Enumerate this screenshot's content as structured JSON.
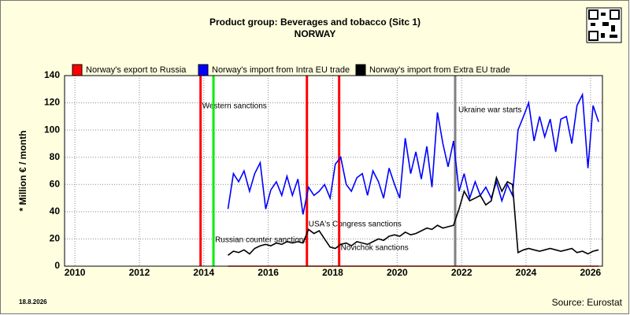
{
  "chart_data": {
    "type": "line",
    "title": "Product group: Beverages and tobacco (Sitc 1)",
    "subtitle": "NORWAY",
    "y_label": "* Million € / month",
    "date": "18.8.2026",
    "source": "Source: Eurostat",
    "xlim": [
      2009.68,
      2026.37
    ],
    "xticks": [
      2010,
      2012,
      2014,
      2016,
      2018,
      2020,
      2022,
      2024,
      2026
    ],
    "ylim": [
      0,
      140
    ],
    "yticks": [
      0,
      20,
      40,
      60,
      80,
      100,
      120,
      140
    ],
    "grid": true,
    "x": [
      2014.75,
      2014.92,
      2015.08,
      2015.25,
      2015.42,
      2015.58,
      2015.75,
      2015.92,
      2016.08,
      2016.25,
      2016.42,
      2016.58,
      2016.75,
      2016.92,
      2017.08,
      2017.25,
      2017.42,
      2017.58,
      2017.75,
      2017.92,
      2018.08,
      2018.25,
      2018.42,
      2018.58,
      2018.75,
      2018.92,
      2019.08,
      2019.25,
      2019.42,
      2019.58,
      2019.75,
      2019.92,
      2020.08,
      2020.25,
      2020.42,
      2020.58,
      2020.75,
      2020.92,
      2021.08,
      2021.25,
      2021.42,
      2021.58,
      2021.75,
      2021.92,
      2022.08,
      2022.25,
      2022.42,
      2022.58,
      2022.75,
      2022.92,
      2023.08,
      2023.25,
      2023.42,
      2023.58,
      2023.75,
      2023.92,
      2024.08,
      2024.25,
      2024.42,
      2024.58,
      2024.75,
      2024.92,
      2025.08,
      2025.25,
      2025.42,
      2025.58,
      2025.75,
      2025.92,
      2026.08,
      2026.25
    ],
    "series": [
      {
        "name": "Norway's export to Russia",
        "color": "#ff0000",
        "values": [
          0,
          0,
          0,
          0,
          0,
          0,
          0,
          0,
          0,
          0,
          0,
          0,
          0,
          0,
          0,
          0,
          0,
          0,
          0,
          0,
          0,
          0,
          0,
          0,
          0,
          0,
          0,
          0,
          0,
          0,
          0,
          0,
          0,
          0,
          0,
          0,
          0,
          0,
          0,
          0,
          0,
          0,
          0,
          0,
          0,
          0,
          0,
          0,
          0,
          0,
          0,
          0,
          0,
          0,
          0,
          0,
          0,
          0,
          0,
          0,
          0,
          0,
          0,
          0,
          0,
          0,
          0,
          0,
          0,
          0
        ]
      },
      {
        "name": "Norway's import from Intra EU trade",
        "color": "#0000ff",
        "values": [
          42,
          68,
          62,
          70,
          55,
          68,
          76,
          42,
          56,
          62,
          52,
          66,
          52,
          64,
          38,
          58,
          52,
          55,
          60,
          50,
          75,
          80,
          60,
          55,
          65,
          68,
          52,
          70,
          62,
          50,
          72,
          60,
          50,
          94,
          68,
          84,
          64,
          88,
          58,
          113,
          90,
          73,
          92,
          55,
          68,
          50,
          62,
          52,
          58,
          50,
          62,
          48,
          60,
          52,
          100,
          110,
          120,
          92,
          110,
          95,
          108,
          84,
          108,
          110,
          90,
          118,
          126,
          72,
          118,
          106
        ]
      },
      {
        "name": "Norway's import from Extra EU trade",
        "color": "#000000",
        "values": [
          8,
          11,
          10,
          12,
          9,
          13,
          15,
          16,
          15,
          17,
          16,
          18,
          17,
          18,
          17,
          27,
          24,
          26,
          20,
          14,
          13,
          16,
          17,
          15,
          18,
          17,
          16,
          18,
          20,
          19,
          22,
          23,
          22,
          25,
          23,
          24,
          26,
          28,
          27,
          30,
          28,
          29,
          30,
          42,
          55,
          48,
          50,
          52,
          45,
          48,
          65,
          55,
          62,
          60,
          10,
          12,
          13,
          12,
          11,
          12,
          13,
          12,
          11,
          12,
          13,
          10,
          11,
          9,
          11,
          12
        ]
      }
    ],
    "events": [
      {
        "x": 2013.9,
        "label": "Western sanctions",
        "color": "#ff0000"
      },
      {
        "x": 2014.3,
        "label": "Russian counter sanctions",
        "color": "#00ee00"
      },
      {
        "x": 2017.2,
        "label": "USA's Congress sanctions",
        "color": "#ff0000"
      },
      {
        "x": 2018.2,
        "label": "Novichok sanctions",
        "color": "#ff0000"
      },
      {
        "x": 2021.8,
        "label": "Ukraine war starts",
        "color": "#808080"
      }
    ]
  }
}
